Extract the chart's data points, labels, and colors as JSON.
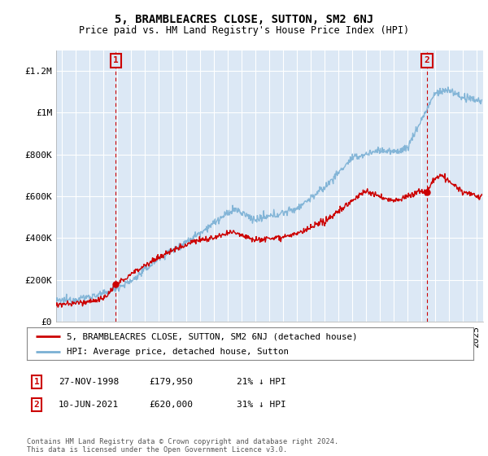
{
  "title": "5, BRAMBLEACRES CLOSE, SUTTON, SM2 6NJ",
  "subtitle": "Price paid vs. HM Land Registry's House Price Index (HPI)",
  "ylabel_ticks": [
    "£0",
    "£200K",
    "£400K",
    "£600K",
    "£800K",
    "£1M",
    "£1.2M"
  ],
  "ytick_values": [
    0,
    200000,
    400000,
    600000,
    800000,
    1000000,
    1200000
  ],
  "ylim": [
    0,
    1300000
  ],
  "xlim_start": 1994.6,
  "xlim_end": 2025.5,
  "background_color": "#ffffff",
  "plot_background": "#dce8f5",
  "grid_color": "#ffffff",
  "red_line_color": "#cc0000",
  "blue_line_color": "#7ab0d4",
  "marker1_date": 1998.92,
  "marker1_price": 179950,
  "marker2_date": 2021.44,
  "marker2_price": 620000,
  "legend_line1": "5, BRAMBLEACRES CLOSE, SUTTON, SM2 6NJ (detached house)",
  "legend_line2": "HPI: Average price, detached house, Sutton",
  "footer": "Contains HM Land Registry data © Crown copyright and database right 2024.\nThis data is licensed under the Open Government Licence v3.0.",
  "vline1_x": 1998.92,
  "vline2_x": 2021.44,
  "vline_color": "#cc0000",
  "ann1_date": "27-NOV-1998",
  "ann1_price": "£179,950",
  "ann1_hpi": "21% ↓ HPI",
  "ann2_date": "10-JUN-2021",
  "ann2_price": "£620,000",
  "ann2_hpi": "31% ↓ HPI"
}
